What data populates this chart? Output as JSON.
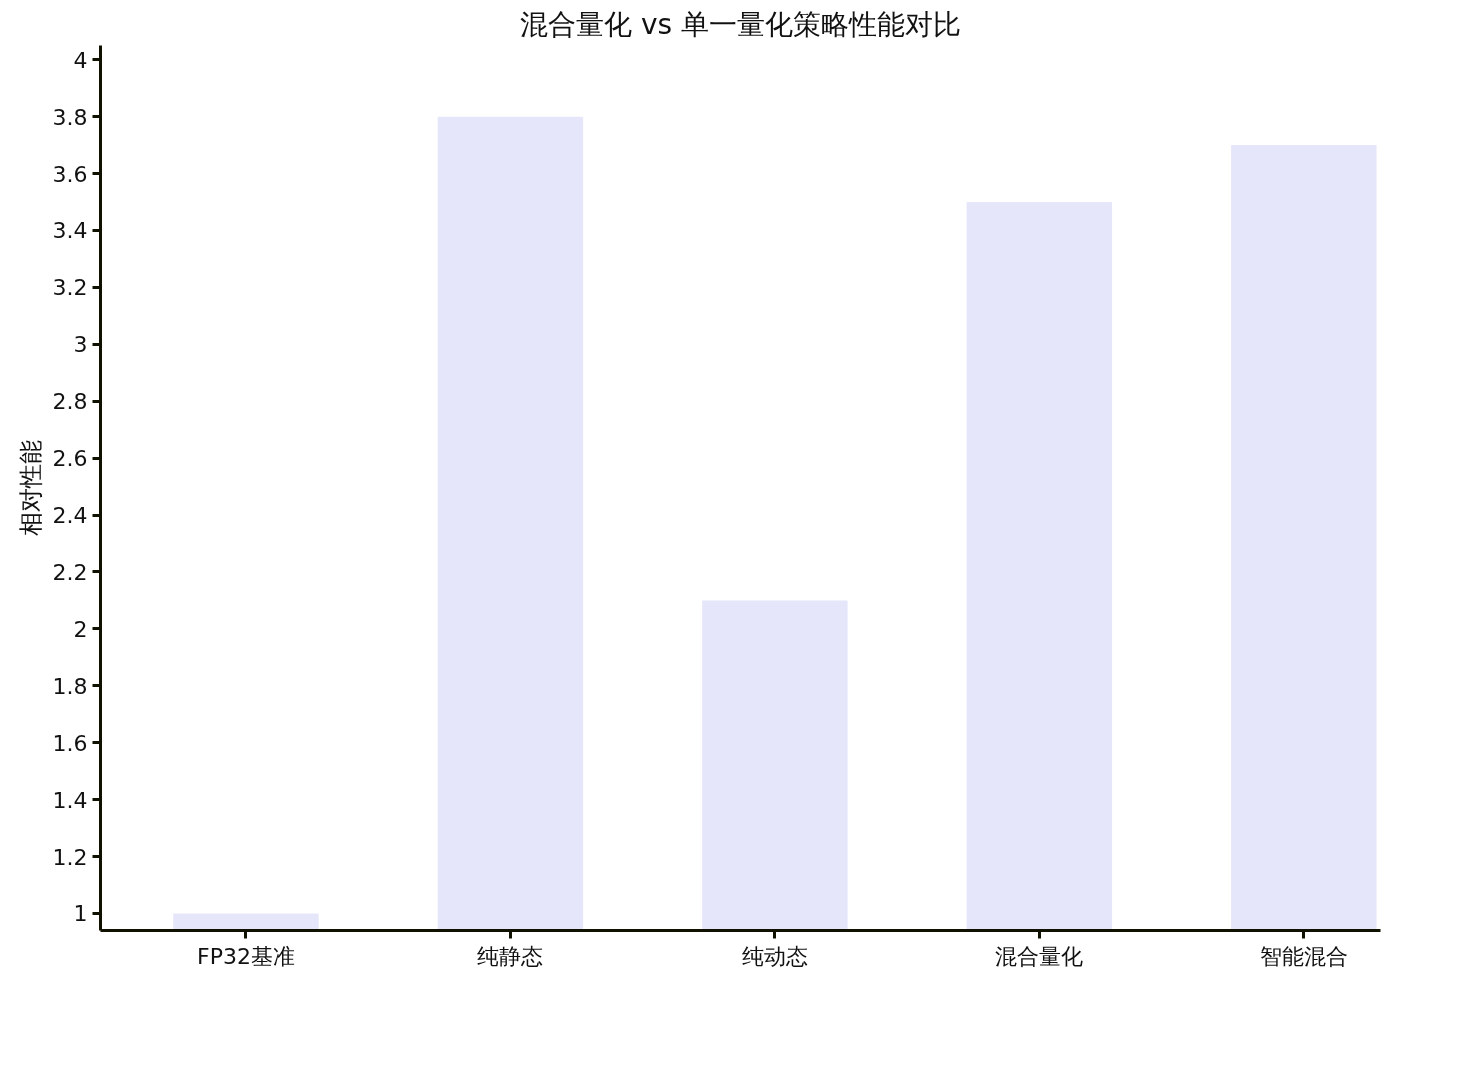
{
  "chart_data": {
    "type": "bar",
    "title": "混合量化 vs 单一量化策略性能对比",
    "ylabel": "相对性能",
    "categories": [
      "FP32基准",
      "纯静态",
      "纯动态",
      "混合量化",
      "智能混合"
    ],
    "values": [
      1.0,
      3.8,
      2.1,
      3.5,
      3.7
    ],
    "color": "#e6e6fa",
    "ylim": [
      0.94,
      4.05
    ],
    "yticks": [
      1,
      1.2,
      1.4,
      1.6,
      1.8,
      2,
      2.2,
      2.4,
      2.6,
      2.8,
      3,
      3.2,
      3.4,
      3.6,
      3.8,
      4
    ],
    "grid": false
  }
}
